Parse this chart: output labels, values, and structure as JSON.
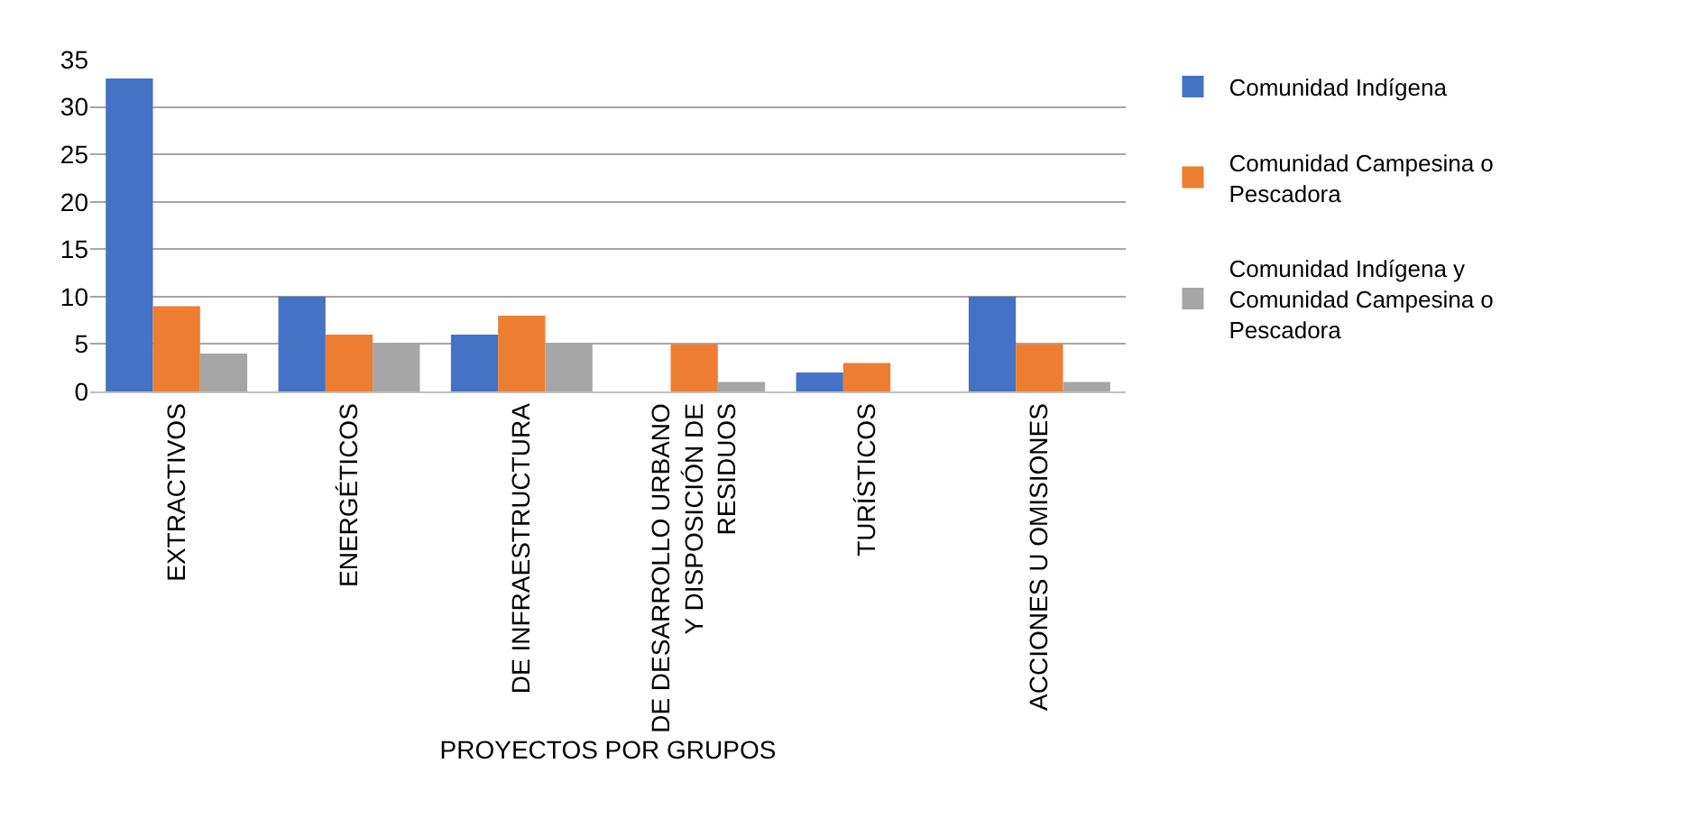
{
  "chart_data": {
    "type": "bar",
    "xlabel": "PROYECTOS POR GRUPOS",
    "categories": [
      "EXTRACTIVOS",
      "ENERGÉTICOS",
      "DE INFRAESTRUCTURA",
      "DE DESARROLLO URBANO Y DISPOSICIÓN DE RESIDUOS",
      "TURÍSTICOS",
      "ACCIONES U OMISIONES"
    ],
    "series": [
      {
        "name": "Comunidad Indígena",
        "color": "#4472c4",
        "values": [
          33,
          10,
          6,
          0,
          2,
          10
        ]
      },
      {
        "name": "Comunidad Campesina o Pescadora",
        "color": "#ed7d31",
        "values": [
          9,
          6,
          8,
          5,
          3,
          5
        ]
      },
      {
        "name": "Comunidad Indígena y Comunidad Campesina o Pescadora",
        "color": "#a5a5a5",
        "values": [
          4,
          5,
          5,
          1,
          0,
          1
        ]
      }
    ],
    "ylim": [
      0,
      35
    ],
    "yticks": [
      0,
      5,
      10,
      15,
      20,
      25,
      30,
      35
    ],
    "grid": "y",
    "legend": "right"
  }
}
